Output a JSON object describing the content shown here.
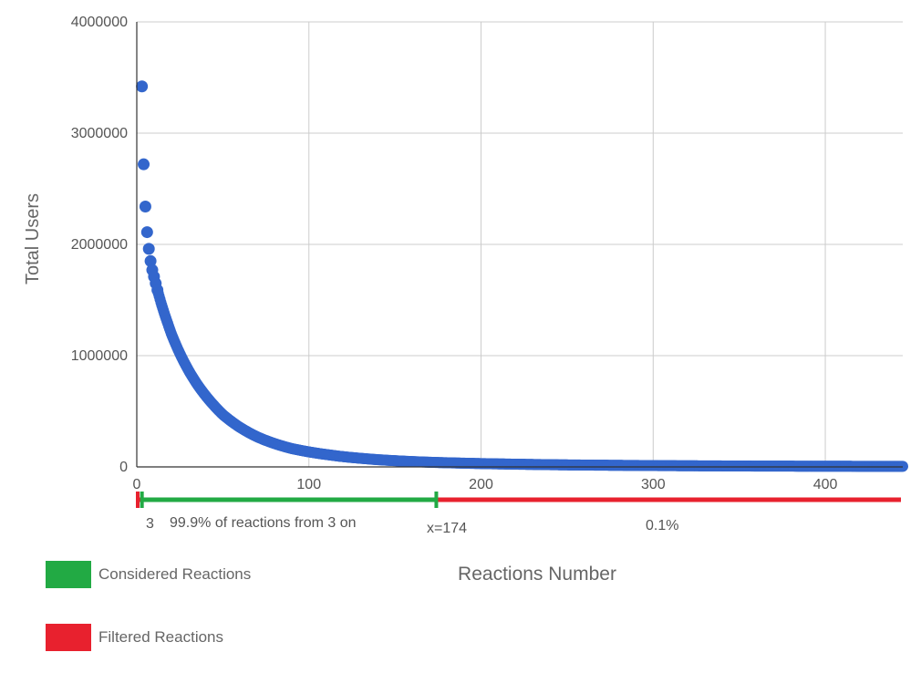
{
  "chart_data": {
    "type": "scatter",
    "xlabel": "Reactions Number",
    "ylabel": "Total Users",
    "xlim": [
      0,
      445
    ],
    "ylim": [
      0,
      4000000
    ],
    "x_ticks": [
      "0",
      "100",
      "200",
      "300",
      "400"
    ],
    "y_ticks": [
      "0",
      "1000000",
      "2000000",
      "3000000",
      "4000000"
    ],
    "grid": true,
    "series": [
      {
        "color": "#3366cc",
        "points": [
          [
            3,
            3420000
          ],
          [
            4,
            2720000
          ],
          [
            5,
            2340000
          ],
          [
            6,
            2110000
          ],
          [
            7,
            1960000
          ],
          [
            8,
            1850000
          ],
          [
            9,
            1770000
          ],
          [
            10,
            1710000
          ],
          [
            11,
            1650000
          ],
          [
            12,
            1590000
          ],
          [
            14,
            1480000
          ],
          [
            16,
            1380000
          ],
          [
            18,
            1290000
          ],
          [
            20,
            1200000
          ],
          [
            25,
            1020000
          ],
          [
            30,
            870000
          ],
          [
            35,
            745000
          ],
          [
            40,
            640000
          ],
          [
            45,
            550000
          ],
          [
            50,
            470000
          ],
          [
            60,
            355000
          ],
          [
            70,
            270000
          ],
          [
            80,
            210000
          ],
          [
            90,
            165000
          ],
          [
            100,
            135000
          ],
          [
            120,
            92000
          ],
          [
            140,
            65000
          ],
          [
            160,
            48000
          ],
          [
            174,
            40000
          ],
          [
            200,
            30000
          ],
          [
            250,
            18000
          ],
          [
            300,
            12000
          ],
          [
            350,
            8000
          ],
          [
            400,
            6000
          ],
          [
            445,
            5000
          ]
        ]
      }
    ],
    "ranges": [
      {
        "from": 0,
        "to": 3,
        "color": "#e8212e"
      },
      {
        "from": 3,
        "to": 174,
        "color": "#22aa44"
      },
      {
        "from": 174,
        "to": 445,
        "color": "#e8212e"
      }
    ],
    "annotations": {
      "start_label": "3",
      "considered_text": "99.9% of reactions from 3 on",
      "cutoff_label": "x=174",
      "filtered_text": "0.1%"
    }
  },
  "legend": {
    "items": [
      {
        "label": "Considered Reactions",
        "color": "#22aa44"
      },
      {
        "label": "Filtered Reactions",
        "color": "#e8212e"
      }
    ]
  }
}
